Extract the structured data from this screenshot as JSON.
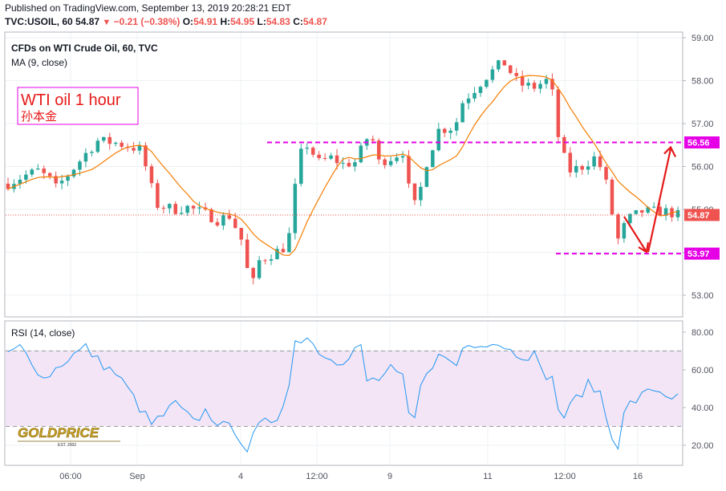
{
  "header": {
    "published": "Published on TradingView.com, September 13, 2019 20:28:21 EDT",
    "symbol": "TVC:USOIL, 60",
    "last": "54.87",
    "down_arrow": "▼",
    "change": "−0.21 (−0.38%)",
    "o_label": "O:",
    "o": "54.91",
    "h_label": "H:",
    "h": "54.95",
    "l_label": "L:",
    "l": "54.83",
    "c_label": "C:",
    "c": "54.87"
  },
  "legend": {
    "instrument": "CFDs on WTI Crude Oil, 60, TVC",
    "ma": "MA (9, close)",
    "rsi": "RSI (14, close)"
  },
  "annotation": {
    "title": "WTI oil 1 hour",
    "subtitle": "孙本金"
  },
  "watermark": {
    "brand": "GOLDPRICE",
    "est": "EST. 2002"
  },
  "colors": {
    "up": "#26a69a",
    "down": "#ef5350",
    "ma": "#f57c00",
    "rsi": "#2196f3",
    "level": "#e600e6",
    "arrow": "#e61919",
    "rsi_band": "#f3e5f5"
  },
  "chart_data": [
    {
      "type": "candlestick",
      "title": "CFDs on WTI Crude Oil, 60, TVC",
      "ylim": [
        52.8,
        59.1
      ],
      "y_ticks": [
        "59.00",
        "58.00",
        "57.00",
        "56.00",
        "55.00",
        "54.00",
        "53.00"
      ],
      "x_ticks": [
        "06:00",
        "Sep",
        "4",
        "12:00",
        "9",
        "11",
        "12:00",
        "16"
      ],
      "close_path": [
        [
          0,
          55.6
        ],
        [
          3,
          55.8
        ],
        [
          5,
          55.9
        ],
        [
          7,
          55.7
        ],
        [
          8,
          55.5
        ],
        [
          10,
          55.8
        ],
        [
          13,
          56.3
        ],
        [
          15,
          56.6
        ],
        [
          18,
          56.55
        ],
        [
          22,
          56.4
        ],
        [
          23,
          56.0
        ],
        [
          24,
          55.5
        ],
        [
          25,
          55.1
        ],
        [
          28,
          55.0
        ],
        [
          30,
          55.05
        ],
        [
          33,
          54.9
        ],
        [
          35,
          54.75
        ],
        [
          37,
          54.85
        ],
        [
          38,
          54.6
        ],
        [
          39,
          54.3
        ],
        [
          40,
          53.6
        ],
        [
          41,
          53.3
        ],
        [
          42,
          53.8
        ],
        [
          44,
          53.95
        ],
        [
          46,
          54.1
        ],
        [
          47,
          54.4
        ],
        [
          48,
          55.5
        ],
        [
          49,
          56.3
        ],
        [
          50,
          56.5
        ],
        [
          52,
          56.1
        ],
        [
          54,
          56.2
        ],
        [
          56,
          56.05
        ],
        [
          58,
          56.1
        ],
        [
          60,
          56.65
        ],
        [
          61,
          56.6
        ],
        [
          62,
          56.1
        ],
        [
          64,
          56.2
        ],
        [
          66,
          56.35
        ],
        [
          67,
          55.5
        ],
        [
          68,
          55.1
        ],
        [
          69,
          55.5
        ],
        [
          70,
          56.1
        ],
        [
          72,
          56.85
        ],
        [
          74,
          56.9
        ],
        [
          75,
          57.05
        ],
        [
          76,
          57.5
        ],
        [
          78,
          57.8
        ],
        [
          80,
          58.1
        ],
        [
          82,
          58.35
        ],
        [
          83,
          58.4
        ],
        [
          84,
          58.2
        ],
        [
          85,
          58.0
        ],
        [
          86,
          57.9
        ],
        [
          88,
          57.85
        ],
        [
          90,
          58.0
        ],
        [
          91,
          57.7
        ],
        [
          92,
          56.7
        ],
        [
          93,
          56.2
        ],
        [
          94,
          55.9
        ],
        [
          96,
          56.0
        ],
        [
          98,
          56.2
        ],
        [
          99,
          56.0
        ],
        [
          100,
          55.6
        ],
        [
          101,
          54.9
        ],
        [
          102,
          54.3
        ],
        [
          103,
          54.6
        ],
        [
          104,
          54.8
        ],
        [
          106,
          54.95
        ],
        [
          108,
          54.95
        ],
        [
          110,
          54.95
        ],
        [
          112,
          54.87
        ]
      ],
      "rsi_ylim": [
        12,
        84
      ],
      "rsi_ticks": [
        "80.00",
        "60.00",
        "40.00",
        "20.00"
      ],
      "rsi_band": [
        30,
        70
      ],
      "rsi_path": [
        [
          0,
          68
        ],
        [
          2,
          72
        ],
        [
          4,
          65
        ],
        [
          6,
          55
        ],
        [
          7,
          58
        ],
        [
          10,
          66
        ],
        [
          13,
          72
        ],
        [
          15,
          65
        ],
        [
          18,
          58
        ],
        [
          20,
          50
        ],
        [
          22,
          40
        ],
        [
          24,
          31
        ],
        [
          26,
          36
        ],
        [
          28,
          42
        ],
        [
          31,
          32
        ],
        [
          33,
          38
        ],
        [
          36,
          30
        ],
        [
          38,
          28
        ],
        [
          40,
          18
        ],
        [
          42,
          30
        ],
        [
          45,
          35
        ],
        [
          47,
          52
        ],
        [
          48,
          75
        ],
        [
          50,
          78
        ],
        [
          52,
          70
        ],
        [
          54,
          68
        ],
        [
          56,
          62
        ],
        [
          58,
          70
        ],
        [
          59,
          72
        ],
        [
          60,
          54
        ],
        [
          62,
          55
        ],
        [
          64,
          60
        ],
        [
          66,
          55
        ],
        [
          67,
          36
        ],
        [
          68,
          34
        ],
        [
          69,
          50
        ],
        [
          70,
          60
        ],
        [
          72,
          67
        ],
        [
          74,
          65
        ],
        [
          75,
          62
        ],
        [
          76,
          72
        ],
        [
          79,
          75
        ],
        [
          82,
          74
        ],
        [
          83,
          73
        ],
        [
          84,
          70
        ],
        [
          86,
          68
        ],
        [
          88,
          68
        ],
        [
          89,
          60
        ],
        [
          91,
          55
        ],
        [
          92,
          40
        ],
        [
          93,
          35
        ],
        [
          95,
          45
        ],
        [
          97,
          52
        ],
        [
          99,
          48
        ],
        [
          100,
          35
        ],
        [
          101,
          26
        ],
        [
          102,
          20
        ],
        [
          103,
          36
        ],
        [
          104,
          42
        ],
        [
          106,
          46
        ],
        [
          108,
          50
        ],
        [
          110,
          47
        ],
        [
          112,
          45
        ]
      ],
      "levels": [
        {
          "value": 56.56,
          "label": "56.56"
        },
        {
          "value": 53.97,
          "label": "53.97"
        }
      ],
      "last_price": {
        "value": 54.87,
        "label": "54.87"
      }
    }
  ]
}
